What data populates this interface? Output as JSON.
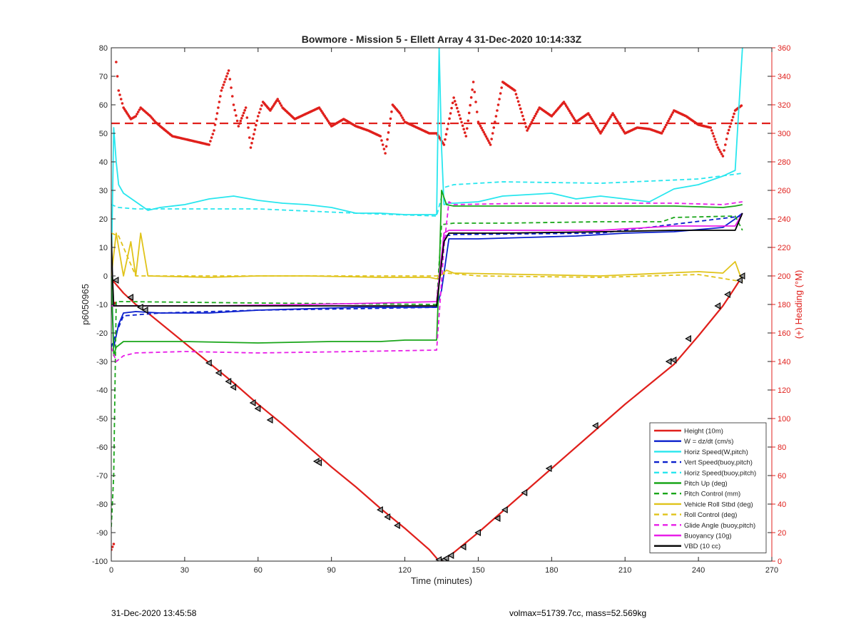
{
  "chart_data": {
    "type": "line",
    "title": "Bowmore - Mission 5 - Ellett Array 4 31-Dec-2020 10:14:33Z",
    "xlabel": "Time (minutes)",
    "ylabel": "p6050965",
    "y2label": "(+) Heading (°M)",
    "xlim": [
      0,
      270
    ],
    "ylim": [
      -100,
      80
    ],
    "y2lim": [
      0,
      360
    ],
    "xticks": [
      0,
      30,
      60,
      90,
      120,
      150,
      180,
      210,
      240,
      270
    ],
    "yticks": [
      -100,
      -90,
      -80,
      -70,
      -60,
      -50,
      -40,
      -30,
      -20,
      -10,
      0,
      10,
      20,
      30,
      40,
      50,
      60,
      70,
      80
    ],
    "y2ticks": [
      0,
      20,
      40,
      60,
      80,
      100,
      120,
      140,
      160,
      180,
      200,
      220,
      240,
      260,
      280,
      300,
      320,
      340,
      360
    ],
    "grid": false,
    "legend_position": "bottom-right",
    "colors": {
      "height": "#e0201c",
      "w": "#0a1fcc",
      "horiz_speed": "#28e6ee",
      "pitch": "#1aa61a",
      "roll": "#e0c31a",
      "glide": "#e81ee8",
      "buoyancy": "#e81ee8",
      "vbd": "#000000",
      "heading": "#e0201c",
      "axis_right": "#e0201c"
    },
    "legend": [
      {
        "label": "Height (10m)",
        "color": "#e0201c",
        "style": "solid"
      },
      {
        "label": "W = dz/dt (cm/s)",
        "color": "#0a1fcc",
        "style": "solid"
      },
      {
        "label": "Horiz Speed(W,pitch)",
        "color": "#28e6ee",
        "style": "solid"
      },
      {
        "label": "Vert Speed(buoy,pitch)",
        "color": "#0a1fcc",
        "style": "dashed"
      },
      {
        "label": "Horiz Speed(buoy,pitch)",
        "color": "#28e6ee",
        "style": "dashed"
      },
      {
        "label": "Pitch Up (deg)",
        "color": "#1aa61a",
        "style": "solid"
      },
      {
        "label": "Pitch Control (mm)",
        "color": "#1aa61a",
        "style": "dashed"
      },
      {
        "label": "Vehicle Roll Stbd (deg)",
        "color": "#e0c31a",
        "style": "solid"
      },
      {
        "label": "Roll Control (deg)",
        "color": "#e0c31a",
        "style": "dashed"
      },
      {
        "label": "Glide Angle (buoy,pitch)",
        "color": "#e81ee8",
        "style": "dashed"
      },
      {
        "label": "Buoyancy (10g)",
        "color": "#e81ee8",
        "style": "solid"
      },
      {
        "label": "VBD (10 cc)",
        "color": "#000000",
        "style": "solid"
      }
    ],
    "series": [
      {
        "name": "Height (10m)",
        "color": "#e0201c",
        "dash": "",
        "x": [
          0,
          1,
          5,
          10,
          15,
          20,
          30,
          40,
          50,
          60,
          70,
          80,
          90,
          100,
          110,
          120,
          130,
          134,
          136,
          140,
          150,
          160,
          170,
          180,
          190,
          200,
          210,
          220,
          230,
          240,
          250,
          255,
          258
        ],
        "y": [
          -1,
          -2,
          -6,
          -10,
          -13,
          -16.5,
          -23.5,
          -30.5,
          -37.5,
          -45,
          -52,
          -59.5,
          -67,
          -74,
          -81.5,
          -88.5,
          -96,
          -100,
          -99.5,
          -97,
          -90,
          -82.5,
          -75,
          -67.5,
          -60,
          -52.5,
          -45,
          -38,
          -31,
          -21,
          -10.5,
          -4,
          0
        ]
      },
      {
        "name": "W = dz/dt (cm/s)",
        "color": "#0a1fcc",
        "dash": "",
        "x": [
          0,
          1,
          3,
          5,
          10,
          20,
          40,
          60,
          80,
          100,
          120,
          133,
          135,
          138,
          150,
          170,
          190,
          210,
          230,
          250,
          255,
          258
        ],
        "y": [
          0,
          -25,
          -17,
          -13,
          -12.5,
          -13,
          -13,
          -12,
          -11.5,
          -11,
          -11,
          -11,
          -5,
          13,
          13,
          13.5,
          14,
          15,
          15.5,
          17,
          20,
          22
        ]
      },
      {
        "name": "Horiz Speed(W,pitch)",
        "color": "#28e6ee",
        "dash": "",
        "x": [
          0,
          1,
          2,
          3,
          5,
          10,
          15,
          20,
          30,
          40,
          50,
          60,
          70,
          80,
          90,
          100,
          110,
          120,
          133,
          134,
          135,
          136,
          138,
          140,
          150,
          160,
          170,
          180,
          190,
          200,
          210,
          220,
          230,
          240,
          250,
          255,
          258
        ],
        "y": [
          0,
          52,
          40,
          32,
          29,
          26,
          23,
          24,
          25,
          27,
          28,
          26.5,
          25.5,
          25,
          24,
          22,
          22,
          21.5,
          21.5,
          80,
          45,
          25,
          25.5,
          25.5,
          26,
          28,
          28.5,
          29,
          27,
          28,
          27,
          26,
          30.5,
          32,
          35,
          37,
          80
        ]
      },
      {
        "name": "Vert Speed(buoy,pitch)",
        "color": "#0a1fcc",
        "dash": "6,4",
        "x": [
          0,
          2,
          5,
          20,
          60,
          100,
          133,
          136,
          140,
          200,
          258
        ],
        "y": [
          -25,
          -20,
          -14,
          -13,
          -12,
          -11.5,
          -11,
          14,
          14.5,
          15,
          21
        ]
      },
      {
        "name": "Horiz Speed(buoy,pitch)",
        "color": "#28e6ee",
        "dash": "6,4",
        "x": [
          0,
          3,
          10,
          30,
          60,
          100,
          133,
          136,
          140,
          160,
          200,
          240,
          258
        ],
        "y": [
          25,
          24,
          23.5,
          23.5,
          23.5,
          22,
          21,
          31,
          32,
          33,
          32.5,
          34,
          36
        ]
      },
      {
        "name": "Pitch Up (deg)",
        "color": "#1aa61a",
        "dash": "",
        "x": [
          0,
          1,
          2,
          5,
          10,
          30,
          60,
          90,
          110,
          120,
          133,
          134,
          135,
          137,
          140,
          160,
          200,
          230,
          250,
          255,
          258
        ],
        "y": [
          0,
          -28,
          -25,
          -23,
          -23,
          -23,
          -23.5,
          -23,
          -23,
          -22.5,
          -22.5,
          0,
          30,
          25,
          24.5,
          24.5,
          24.5,
          24.5,
          24,
          24.5,
          25
        ]
      },
      {
        "name": "Pitch Control (mm)",
        "color": "#1aa61a",
        "dash": "6,4",
        "x": [
          0,
          1,
          2,
          5,
          60,
          133,
          135,
          140,
          160,
          200,
          225,
          230,
          255,
          258
        ],
        "y": [
          -88,
          -70,
          -9,
          -9,
          -9.5,
          -10,
          18,
          18.5,
          18.5,
          19,
          19,
          20.5,
          21,
          16
        ]
      },
      {
        "name": "Vehicle Roll Stbd (deg)",
        "color": "#e0c31a",
        "dash": "",
        "x": [
          0,
          2,
          5,
          8,
          10,
          12,
          15,
          40,
          60,
          80,
          110,
          130,
          133,
          137,
          140,
          200,
          240,
          250,
          255,
          258
        ],
        "y": [
          0,
          15,
          0,
          12,
          0,
          15,
          0,
          -0.5,
          0,
          0,
          -0.5,
          -0.5,
          -1,
          2,
          1,
          0,
          1.5,
          1,
          5,
          -2
        ]
      },
      {
        "name": "Roll Control (deg)",
        "color": "#e0c31a",
        "dash": "6,4",
        "x": [
          0,
          3,
          10,
          40,
          80,
          130,
          133,
          137,
          150,
          200,
          240,
          258
        ],
        "y": [
          15,
          14,
          0,
          0,
          0,
          0,
          0,
          1,
          0,
          -0.5,
          0.5,
          -2
        ]
      },
      {
        "name": "Glide Angle (buoy,pitch)",
        "color": "#e81ee8",
        "dash": "6,4",
        "x": [
          0,
          2,
          5,
          10,
          30,
          60,
          100,
          133,
          136,
          138,
          140,
          170,
          200,
          230,
          250,
          258
        ],
        "y": [
          -25,
          -30,
          -28,
          -27,
          -26.5,
          -27,
          -26.5,
          -26,
          10,
          26,
          25,
          25.5,
          25.5,
          25.5,
          25,
          26
        ]
      },
      {
        "name": "Buoyancy (10g)",
        "color": "#e81ee8",
        "dash": "",
        "x": [
          0,
          10,
          40,
          80,
          110,
          133,
          136,
          138,
          160,
          200,
          230,
          255,
          258
        ],
        "y": [
          -10.5,
          -10.5,
          -10.5,
          -10,
          -9.5,
          -9,
          15,
          16,
          16,
          16,
          17.5,
          17.5,
          22
        ]
      },
      {
        "name": "VBD (10 cc)",
        "color": "#000000",
        "dash": "",
        "x": [
          0,
          0.5,
          1,
          10,
          40,
          80,
          110,
          133,
          136,
          138,
          160,
          200,
          230,
          255,
          258
        ],
        "y": [
          15,
          0,
          -10.5,
          -10.5,
          -10.5,
          -10.5,
          -10.5,
          -10.5,
          12,
          15,
          15,
          15.5,
          16,
          16,
          22
        ]
      }
    ],
    "heading_series": {
      "name": "Heading",
      "color": "#e0201c",
      "axis": "right",
      "reference_line_y2": 307,
      "x": [
        0,
        1,
        2,
        3,
        5,
        8,
        10,
        12,
        14,
        16,
        18,
        20,
        25,
        30,
        35,
        40,
        42,
        45,
        48,
        50,
        52,
        55,
        57,
        60,
        62,
        65,
        68,
        70,
        75,
        80,
        85,
        90,
        95,
        100,
        105,
        110,
        112,
        115,
        118,
        120,
        125,
        130,
        133,
        136,
        140,
        145,
        148,
        150,
        155,
        160,
        165,
        170,
        175,
        180,
        185,
        190,
        195,
        200,
        205,
        210,
        215,
        220,
        225,
        230,
        235,
        240,
        245,
        248,
        250,
        252,
        255,
        258
      ],
      "y": [
        8,
        12,
        350,
        330,
        318,
        310,
        312,
        318,
        315,
        312,
        308,
        305,
        298,
        296,
        294,
        292,
        302,
        330,
        344,
        320,
        305,
        318,
        290,
        312,
        322,
        316,
        324,
        318,
        310,
        314,
        318,
        305,
        310,
        305,
        302,
        298,
        286,
        320,
        314,
        308,
        304,
        300,
        300,
        292,
        325,
        298,
        336,
        308,
        292,
        336,
        330,
        302,
        318,
        312,
        322,
        308,
        314,
        300,
        314,
        300,
        304,
        303,
        300,
        316,
        312,
        306,
        304,
        290,
        284,
        300,
        316,
        320
      ]
    },
    "markers": [
      {
        "x": 2,
        "y": -1.5
      },
      {
        "x": 8,
        "y": -7.5
      },
      {
        "x": 12,
        "y": -11
      },
      {
        "x": 14,
        "y": -12
      },
      {
        "x": 40,
        "y": -30.5
      },
      {
        "x": 44,
        "y": -34
      },
      {
        "x": 48,
        "y": -37
      },
      {
        "x": 50,
        "y": -39
      },
      {
        "x": 58,
        "y": -44.5
      },
      {
        "x": 60,
        "y": -46.5
      },
      {
        "x": 65,
        "y": -50.5
      },
      {
        "x": 84,
        "y": -65
      },
      {
        "x": 85,
        "y": -65.5
      },
      {
        "x": 110,
        "y": -82
      },
      {
        "x": 113,
        "y": -84.5
      },
      {
        "x": 117,
        "y": -87.5
      },
      {
        "x": 134,
        "y": -99.5
      },
      {
        "x": 136,
        "y": -99.5
      },
      {
        "x": 137,
        "y": -99
      },
      {
        "x": 139,
        "y": -98
      },
      {
        "x": 144,
        "y": -95
      },
      {
        "x": 150,
        "y": -90
      },
      {
        "x": 158,
        "y": -85
      },
      {
        "x": 161,
        "y": -82
      },
      {
        "x": 169,
        "y": -76
      },
      {
        "x": 179,
        "y": -67.5
      },
      {
        "x": 198,
        "y": -52.5
      },
      {
        "x": 228,
        "y": -30
      },
      {
        "x": 230,
        "y": -29.5
      },
      {
        "x": 236,
        "y": -22
      },
      {
        "x": 248,
        "y": -10.5
      },
      {
        "x": 252,
        "y": -6.5
      },
      {
        "x": 257,
        "y": -1.5
      },
      {
        "x": 258,
        "y": 0
      }
    ]
  },
  "footer": {
    "timestamp": "31-Dec-2020 13:45:58",
    "volmax_mass": "volmax=51739.7cc, mass=52.569kg"
  }
}
